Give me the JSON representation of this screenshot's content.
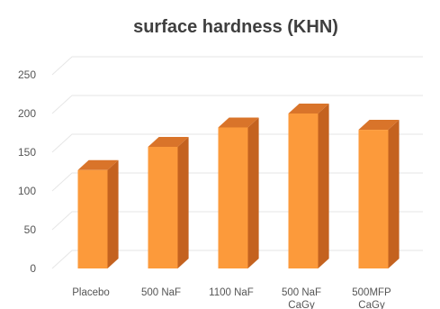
{
  "chart_data": {
    "type": "bar",
    "title": "surface hardness (KHN)",
    "xlabel": "",
    "ylabel": "",
    "categories": [
      [
        "Placebo"
      ],
      [
        "500 NaF"
      ],
      [
        "1100 NaF"
      ],
      [
        "500 NaF",
        "CaGy"
      ],
      [
        "500MFP",
        "CaGy"
      ]
    ],
    "values": [
      127,
      157,
      182,
      200,
      179
    ],
    "ylim": [
      0,
      250
    ],
    "yticks": [
      0,
      50,
      100,
      150,
      200,
      250
    ],
    "grid": true,
    "legend": "none",
    "style": "3d",
    "colors": {
      "front": "#fc9a3b",
      "side": "#c4621f",
      "top": "#d9742a"
    }
  }
}
